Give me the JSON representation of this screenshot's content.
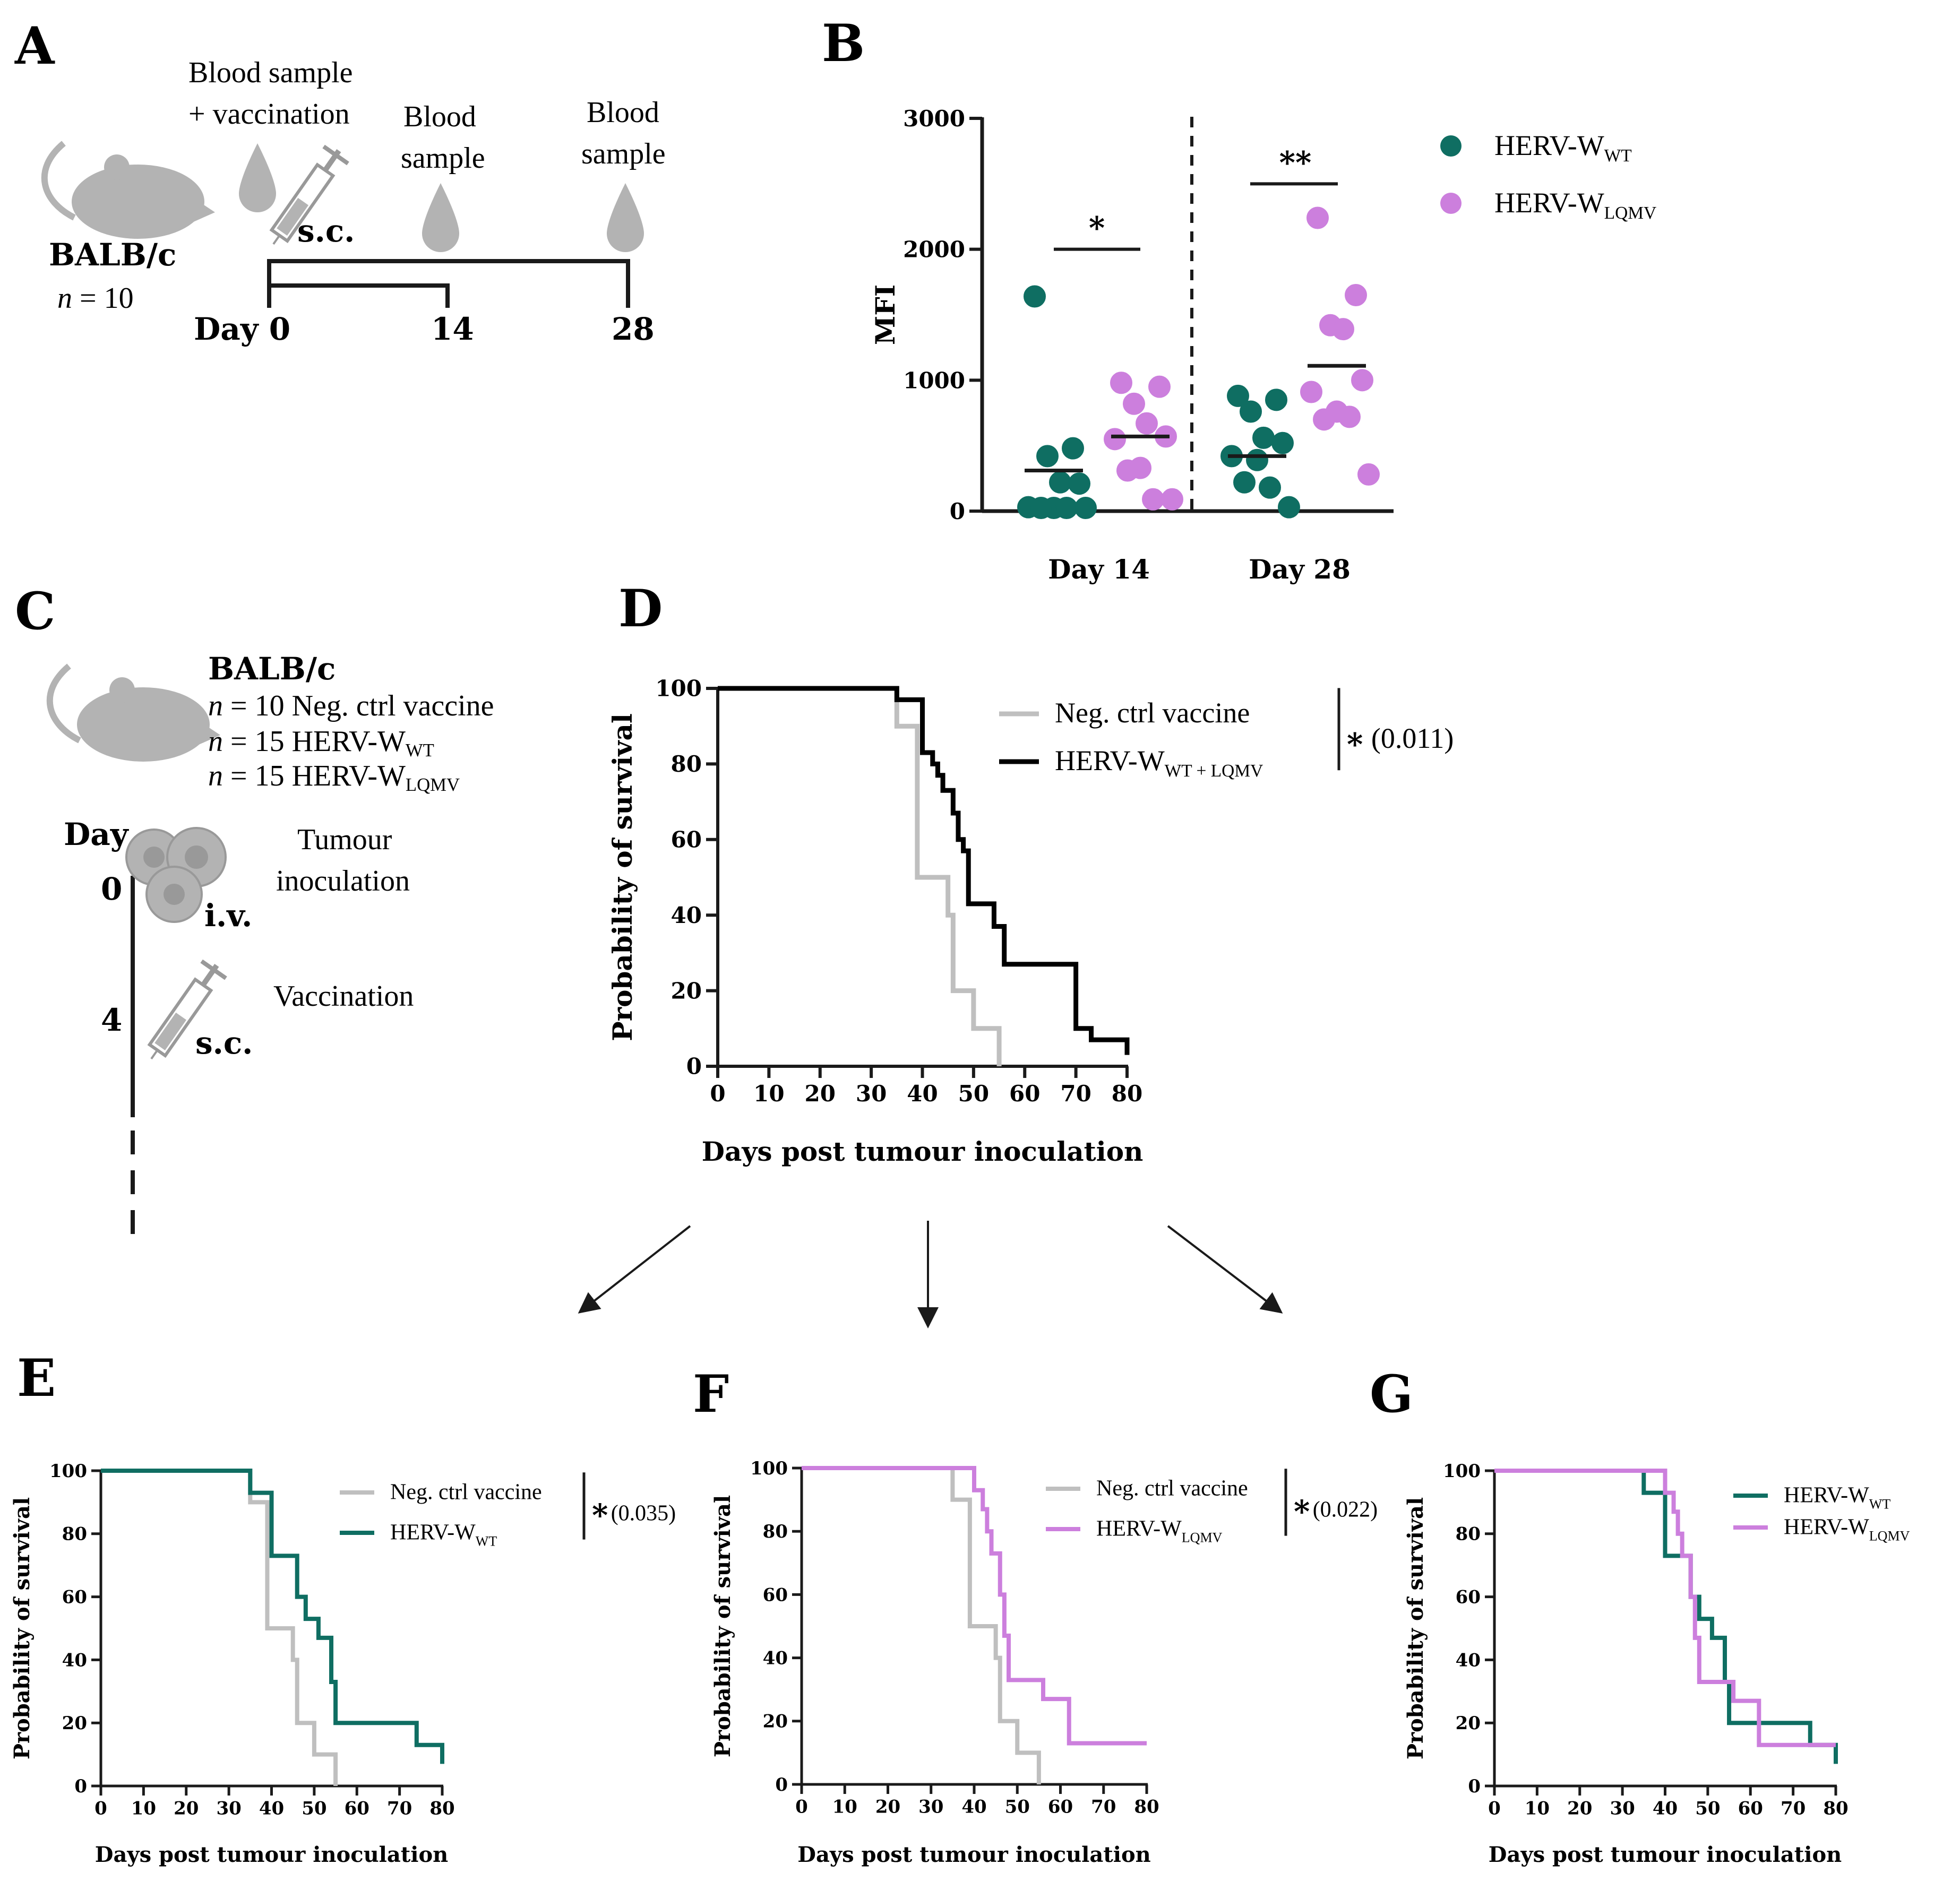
{
  "colors": {
    "wt": "#0f6e62",
    "lqmv": "#cc7fdd",
    "ctrl": "#bfbfbf",
    "combined": "#000000",
    "icon": "#b3b3b3"
  },
  "icons": [
    "mouse-icon",
    "blood-drop-icon",
    "syringe-icon",
    "tumour-cell-icon",
    "arrow-icon"
  ],
  "panelA": {
    "label": "A",
    "strain": "BALB/c",
    "n_italic": "n",
    "n_rest": " = 10",
    "event1_line1": "Blood sample",
    "event1_line2": "+ vaccination",
    "route": "s.c.",
    "event2_line1": "Blood",
    "event2_line2": "sample",
    "event3_line1": "Blood",
    "event3_line2": "sample",
    "day_label": "Day 0",
    "day14": "14",
    "day28": "28"
  },
  "panelC": {
    "label": "C",
    "strain": "BALB/c",
    "n_italic": "n",
    "group1": " = 10 Neg. ctrl vaccine",
    "group2": " = 15 HERV-W",
    "group2_sub": "WT",
    "group3": " = 15 HERV-W",
    "group3_sub": "LQMV",
    "day_header": "Day",
    "day0": "0",
    "day4": "4",
    "event1_line1": "Tumour",
    "event1_line2": "inoculation",
    "route1": "i.v.",
    "event2": "Vaccination",
    "route2": "s.c."
  },
  "chart_data": [
    {
      "panel": "B",
      "type": "scatter",
      "title": "",
      "xlabel": "",
      "ylabel": "MFI",
      "ylim": [
        0,
        3000
      ],
      "yticks": [
        "0",
        "1000",
        "2000",
        "3000"
      ],
      "categories": [
        "Day 14",
        "Day 28"
      ],
      "legend": [
        {
          "base": "HERV-W",
          "sub": "WT"
        },
        {
          "base": "HERV-W",
          "sub": "LQMV"
        }
      ],
      "series": [
        {
          "name": "HERV-WWT",
          "day": "Day 14",
          "mean": 310,
          "values": [
            1640,
            480,
            420,
            220,
            210,
            30,
            20,
            10,
            10,
            20
          ]
        },
        {
          "name": "HERV-WLQMV",
          "day": "Day 14",
          "mean": 570,
          "values": [
            980,
            950,
            820,
            670,
            570,
            550,
            330,
            310,
            90,
            90
          ]
        },
        {
          "name": "HERV-WWT",
          "day": "Day 28",
          "mean": 420,
          "values": [
            880,
            850,
            760,
            560,
            520,
            420,
            390,
            220,
            180,
            30
          ]
        },
        {
          "name": "HERV-WLQMV",
          "day": "Day 28",
          "mean": 1110,
          "values": [
            2240,
            1650,
            1420,
            1390,
            1000,
            910,
            760,
            700,
            720,
            280
          ]
        }
      ],
      "significance": [
        "*",
        "**"
      ]
    },
    {
      "panel": "D",
      "type": "line",
      "xlabel": "Days post tumour inoculation",
      "ylabel": "Probability of survival",
      "xlim": [
        0,
        80
      ],
      "ylim": [
        0,
        100
      ],
      "xticks": [
        "0",
        "10",
        "20",
        "30",
        "40",
        "50",
        "60",
        "70",
        "80"
      ],
      "yticks": [
        "0",
        "20",
        "40",
        "60",
        "80",
        "100"
      ],
      "pvalue": "(0.011)",
      "star": "*",
      "series": [
        {
          "name": "Neg. ctrl vaccine",
          "color": "ctrl",
          "legend_base": "Neg. ctrl vaccine",
          "legend_sub": "",
          "x": [
            0,
            35,
            35,
            39,
            39,
            45,
            45,
            46,
            46,
            50,
            50,
            55,
            55
          ],
          "y": [
            100,
            100,
            90,
            90,
            50,
            50,
            40,
            40,
            20,
            20,
            10,
            10,
            0
          ]
        },
        {
          "name": "HERV-WWT + LQMV",
          "color": "combined",
          "legend_base": "HERV-W",
          "legend_sub": "WT + LQMV",
          "x": [
            0,
            35,
            35,
            40,
            40,
            42,
            42,
            43,
            43,
            44,
            44,
            46,
            46,
            47,
            47,
            48,
            48,
            49,
            49,
            54,
            54,
            56,
            56,
            70,
            70,
            73,
            73,
            80,
            80
          ],
          "y": [
            100,
            100,
            97,
            97,
            83,
            83,
            80,
            80,
            77,
            77,
            73,
            73,
            67,
            67,
            60,
            60,
            57,
            57,
            43,
            43,
            37,
            37,
            27,
            27,
            10,
            10,
            7,
            7,
            3
          ]
        }
      ]
    },
    {
      "panel": "E",
      "type": "line",
      "xlabel": "Days post tumour inoculation",
      "ylabel": "Probability of survival",
      "xlim": [
        0,
        80
      ],
      "ylim": [
        0,
        100
      ],
      "xticks": [
        "0",
        "10",
        "20",
        "30",
        "40",
        "50",
        "60",
        "70",
        "80"
      ],
      "yticks": [
        "0",
        "20",
        "40",
        "60",
        "80",
        "100"
      ],
      "pvalue": "(0.035)",
      "star": "*",
      "series": [
        {
          "name": "Neg. ctrl vaccine",
          "color": "ctrl",
          "legend_base": "Neg. ctrl vaccine",
          "legend_sub": "",
          "x": [
            0,
            35,
            35,
            39,
            39,
            45,
            45,
            46,
            46,
            50,
            50,
            55,
            55
          ],
          "y": [
            100,
            100,
            90,
            90,
            50,
            50,
            40,
            40,
            20,
            20,
            10,
            10,
            0
          ]
        },
        {
          "name": "HERV-WWT",
          "color": "wt",
          "legend_base": "HERV-W",
          "legend_sub": "WT",
          "x": [
            0,
            35,
            35,
            40,
            40,
            46,
            46,
            48,
            48,
            51,
            51,
            54,
            54,
            55,
            55,
            74,
            74,
            80,
            80
          ],
          "y": [
            100,
            100,
            93,
            93,
            73,
            73,
            60,
            60,
            53,
            53,
            47,
            47,
            33,
            33,
            20,
            20,
            13,
            13,
            7
          ]
        }
      ]
    },
    {
      "panel": "F",
      "type": "line",
      "xlabel": "Days post tumour inoculation",
      "ylabel": "Probability of survival",
      "xlim": [
        0,
        80
      ],
      "ylim": [
        0,
        100
      ],
      "xticks": [
        "0",
        "10",
        "20",
        "30",
        "40",
        "50",
        "60",
        "70",
        "80"
      ],
      "yticks": [
        "0",
        "20",
        "40",
        "60",
        "80",
        "100"
      ],
      "pvalue": "(0.022)",
      "star": "*",
      "series": [
        {
          "name": "Neg. ctrl vaccine",
          "color": "ctrl",
          "legend_base": "Neg. ctrl vaccine",
          "legend_sub": "",
          "x": [
            0,
            35,
            35,
            39,
            39,
            45,
            45,
            46,
            46,
            50,
            50,
            55,
            55
          ],
          "y": [
            100,
            100,
            90,
            90,
            50,
            50,
            40,
            40,
            20,
            20,
            10,
            10,
            0
          ]
        },
        {
          "name": "HERV-WLQMV",
          "color": "lqmv",
          "legend_base": "HERV-W",
          "legend_sub": "LQMV",
          "x": [
            0,
            40,
            40,
            42,
            42,
            43,
            43,
            44,
            44,
            46,
            46,
            47,
            47,
            48,
            48,
            56,
            56,
            62,
            62,
            80
          ],
          "y": [
            100,
            100,
            93,
            93,
            87,
            87,
            80,
            80,
            73,
            73,
            60,
            60,
            47,
            47,
            33,
            33,
            27,
            27,
            13,
            13
          ]
        }
      ]
    },
    {
      "panel": "G",
      "type": "line",
      "xlabel": "Days post tumour inoculation",
      "ylabel": "Probability of survival",
      "xlim": [
        0,
        80
      ],
      "ylim": [
        0,
        100
      ],
      "xticks": [
        "0",
        "10",
        "20",
        "30",
        "40",
        "50",
        "60",
        "70",
        "80"
      ],
      "yticks": [
        "0",
        "20",
        "40",
        "60",
        "80",
        "100"
      ],
      "pvalue": "",
      "star": "",
      "series": [
        {
          "name": "HERV-WWT",
          "color": "wt",
          "legend_base": "HERV-W",
          "legend_sub": "WT",
          "x": [
            0,
            35,
            35,
            40,
            40,
            46,
            46,
            48,
            48,
            51,
            51,
            54,
            54,
            55,
            55,
            74,
            74,
            80,
            80
          ],
          "y": [
            100,
            100,
            93,
            93,
            73,
            73,
            60,
            60,
            53,
            53,
            47,
            47,
            33,
            33,
            20,
            20,
            13,
            13,
            7
          ]
        },
        {
          "name": "HERV-WLQMV",
          "color": "lqmv",
          "legend_base": "HERV-W",
          "legend_sub": "LQMV",
          "x": [
            0,
            40,
            40,
            42,
            42,
            43,
            43,
            44,
            44,
            46,
            46,
            47,
            47,
            48,
            48,
            56,
            56,
            62,
            62,
            80
          ],
          "y": [
            100,
            100,
            93,
            93,
            87,
            87,
            80,
            80,
            73,
            73,
            60,
            60,
            47,
            47,
            33,
            33,
            27,
            27,
            13,
            13
          ]
        }
      ]
    }
  ]
}
